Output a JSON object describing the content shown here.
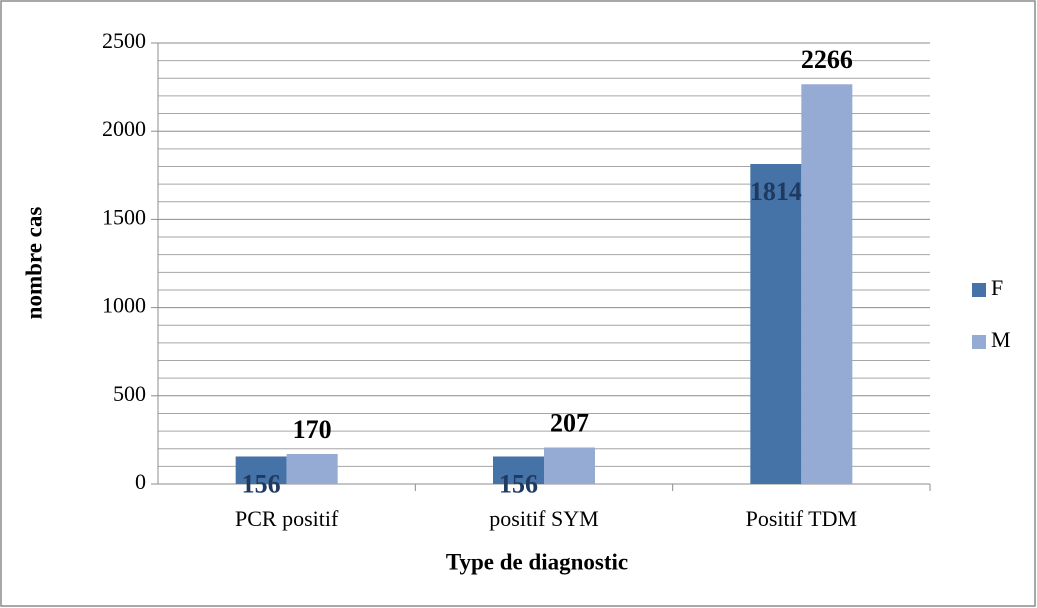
{
  "chart_data": {
    "type": "bar",
    "x_label": "Type de diagnostic",
    "y_label": "nombre cas",
    "categories": [
      "PCR positif",
      "positif SYM",
      "Positif TDM"
    ],
    "series": [
      {
        "name": "F",
        "color": "#4572a7",
        "values": [
          156,
          156,
          1814
        ]
      },
      {
        "name": "M",
        "color": "#95abd3",
        "values": [
          170,
          207,
          2266
        ]
      }
    ],
    "ylim": [
      0,
      2500
    ],
    "yticks": [
      0,
      500,
      1000,
      1500,
      2000,
      2500
    ],
    "minor_yticks": [
      100,
      200,
      300,
      400,
      600,
      700,
      800,
      900,
      1100,
      1200,
      1300,
      1400,
      1600,
      1700,
      1800,
      1900,
      2100,
      2200,
      2300,
      2400
    ],
    "grid": true,
    "legend": "right"
  }
}
